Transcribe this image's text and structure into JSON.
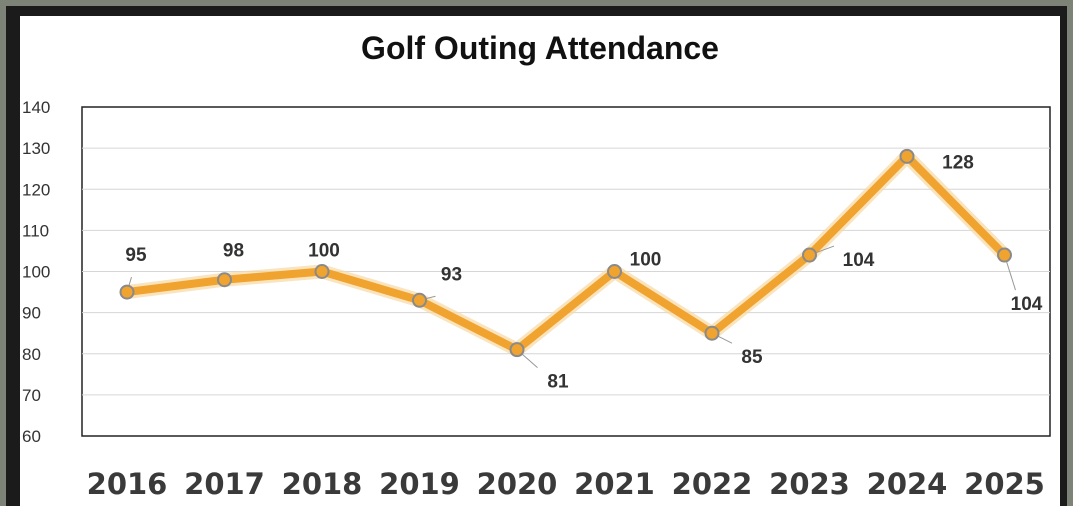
{
  "chart_data": {
    "type": "line",
    "title": "Golf Outing Attendance",
    "categories": [
      "2016",
      "2017",
      "2018",
      "2019",
      "2020",
      "2021",
      "2022",
      "2023",
      "2024",
      "2025"
    ],
    "series": [
      {
        "values": [
          95,
          98,
          100,
          93,
          81,
          100,
          85,
          104,
          128,
          104
        ]
      }
    ],
    "data_labels": [
      "95",
      "98",
      "100",
      "93",
      "81",
      "100",
      "85",
      "104",
      "128",
      "104"
    ],
    "yticks": [
      "60",
      "70",
      "80",
      "90",
      "100",
      "110",
      "120",
      "130",
      "140"
    ],
    "ylim": [
      60,
      140
    ],
    "grid": true,
    "legend": "none",
    "line_color": "#f0a32e",
    "marker_color": "#f0a32e",
    "marker_edge": "#8a8a8a"
  }
}
